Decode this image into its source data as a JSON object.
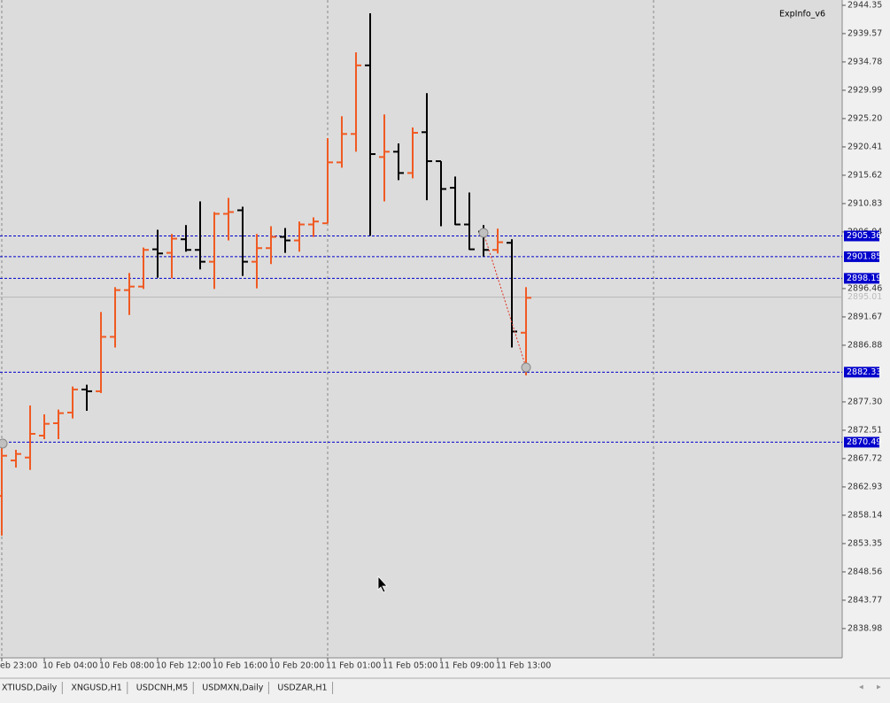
{
  "chart_data": {
    "type": "ohlc",
    "indicator": "ExpInfo_v6",
    "categories": [
      "eb 23:00",
      null,
      null,
      "10 Feb 04:00",
      null,
      null,
      null,
      "10 Feb 08:00",
      null,
      null,
      null,
      "10 Feb 12:00",
      null,
      null,
      null,
      "10 Feb 16:00",
      null,
      null,
      null,
      "10 Feb 20:00",
      null,
      null,
      null,
      "11 Feb 01:00",
      null,
      null,
      null,
      "11 Feb 05:00",
      null,
      null,
      null,
      "11 Feb 09:00",
      null,
      null,
      null,
      "11 Feb 13:00",
      null,
      null
    ],
    "open": [
      2861.4,
      2867.4,
      2867.9,
      2871.6,
      2873.7,
      2875.5,
      2879.4,
      2879.1,
      2888.3,
      2896.2,
      2896.8,
      2903.1,
      2902.5,
      2904.8,
      2903.0,
      2901.0,
      2909.1,
      2909.7,
      2901.0,
      2903.3,
      2905.2,
      2904.6,
      2907.3,
      2907.5,
      2917.8,
      2922.6,
      2934.2,
      2918.7,
      2919.6,
      2916.0,
      2922.9,
      2918.0,
      2913.5,
      2907.3,
      2906.1,
      2903.0,
      2904.2,
      2889.0
    ],
    "high": [
      2870.4,
      2869.2,
      2876.7,
      2875.2,
      2876.0,
      2879.9,
      2880.2,
      2892.5,
      2896.7,
      2899.1,
      2903.4,
      2906.4,
      2905.7,
      2907.2,
      2911.2,
      2909.4,
      2911.8,
      2910.3,
      2905.7,
      2907.0,
      2906.7,
      2907.8,
      2908.5,
      2921.9,
      2925.6,
      2936.4,
      2943.0,
      2925.9,
      2921.0,
      2923.7,
      2929.5,
      2918.0,
      2915.4,
      2912.7,
      2907.2,
      2906.6,
      2904.8,
      2896.7
    ],
    "low": [
      2854.7,
      2866.2,
      2865.8,
      2871.0,
      2871.0,
      2874.5,
      2875.8,
      2878.8,
      2886.5,
      2892.0,
      2896.4,
      2898.3,
      2898.2,
      2902.7,
      2899.7,
      2896.4,
      2904.6,
      2898.6,
      2896.5,
      2900.6,
      2902.5,
      2902.7,
      2905.2,
      2907.5,
      2916.9,
      2919.6,
      2905.4,
      2911.2,
      2914.8,
      2915.1,
      2911.4,
      2907.0,
      2907.2,
      2903.0,
      2901.9,
      2902.4,
      2886.5,
      2881.8
    ],
    "close": [
      2868.2,
      2868.5,
      2871.9,
      2873.6,
      2875.4,
      2879.4,
      2879.1,
      2888.3,
      2896.2,
      2896.8,
      2903.0,
      2902.4,
      2904.9,
      2903.0,
      2901.0,
      2909.1,
      2909.4,
      2901.0,
      2903.3,
      2905.2,
      2904.6,
      2907.3,
      2907.8,
      2917.8,
      2922.6,
      2934.2,
      2919.2,
      2919.6,
      2916.0,
      2922.8,
      2918.0,
      2913.3,
      2907.3,
      2903.1,
      2903.0,
      2904.3,
      2889.2,
      2894.9
    ],
    "up_color": "#f05a22",
    "down_color": "#000000",
    "ylim": [
      2834.03,
      2945.25
    ],
    "yticks": [
      2944.35,
      2939.57,
      2934.78,
      2929.99,
      {
        "value": 2925.2,
        "label": "2925.20"
      },
      2920.41,
      2915.62,
      2910.83,
      2906.04,
      2896.46,
      2891.67,
      2886.88,
      {
        "value": 2877.3,
        "label": "2877.30"
      },
      2872.51,
      2867.72,
      2862.93,
      2858.14,
      2853.35,
      2848.56,
      2843.77,
      2838.98
    ],
    "levels": [
      2905.36,
      2901.85,
      2898.19,
      2882.33,
      2870.49
    ],
    "level_color": "#0000cc",
    "bid": 2895.01
  },
  "tabs": [
    "XTIUSD,Daily",
    "XNGUSD,H1",
    "USDCNH,M5",
    "USDMXN,Daily",
    "USDZAR,H1"
  ]
}
